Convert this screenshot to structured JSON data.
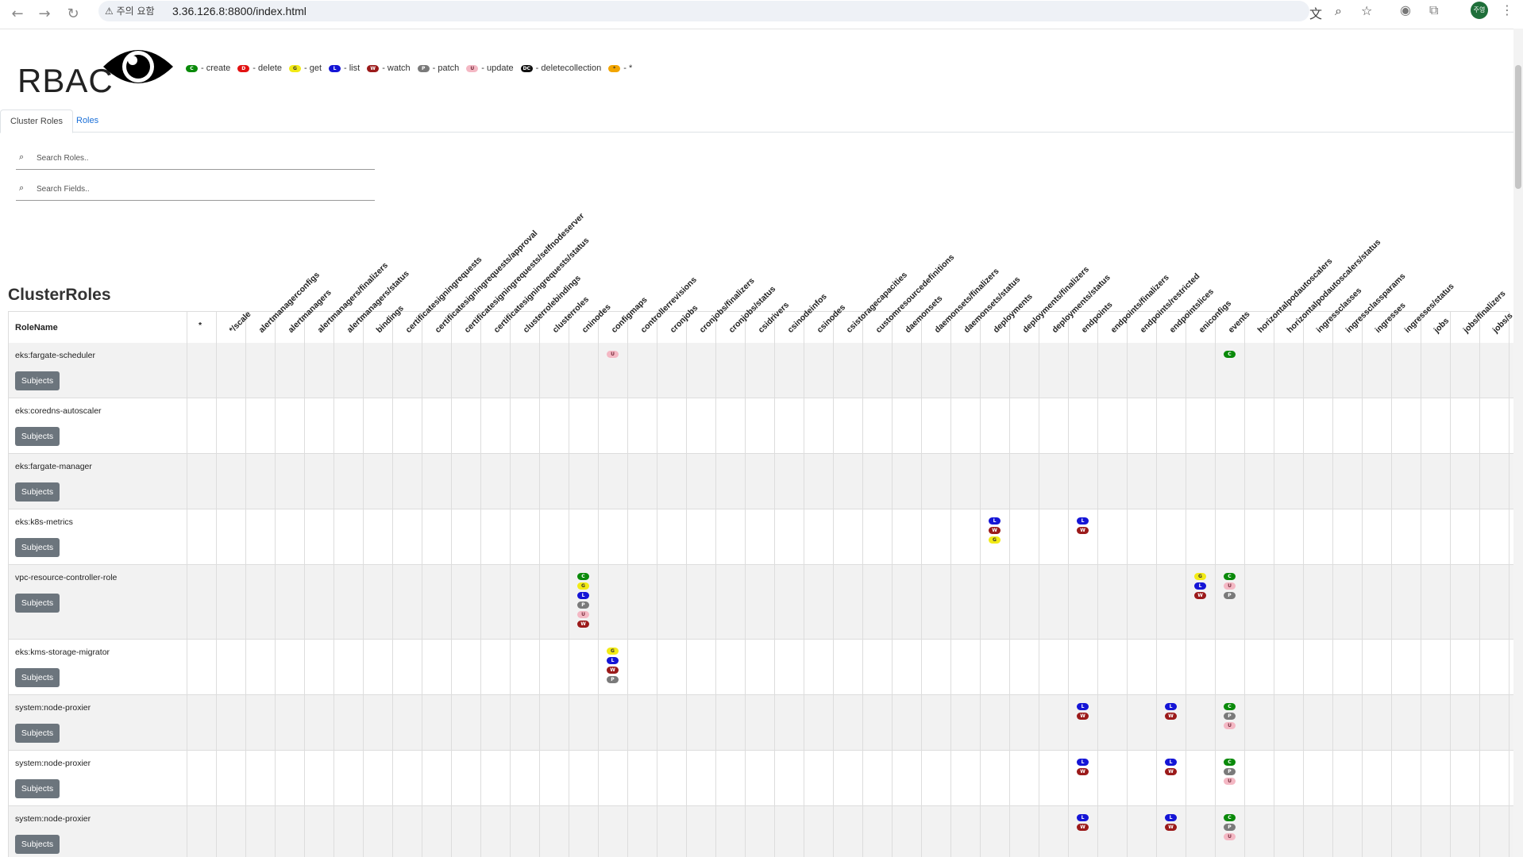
{
  "browser": {
    "warning": "⚠ 주의 요함",
    "url": "3.36.126.8:8800/index.html",
    "avatar": "주영"
  },
  "header": {
    "title": "RBAC",
    "legend": [
      {
        "code": "C",
        "cls": "c",
        "label": "- create"
      },
      {
        "code": "D",
        "cls": "d",
        "label": "- delete"
      },
      {
        "code": "G",
        "cls": "g",
        "label": "- get"
      },
      {
        "code": "L",
        "cls": "l",
        "label": "- list"
      },
      {
        "code": "W",
        "cls": "w",
        "label": "- watch"
      },
      {
        "code": "P",
        "cls": "p",
        "label": "- patch"
      },
      {
        "code": "U",
        "cls": "u",
        "label": "- update"
      },
      {
        "code": "DC",
        "cls": "dc",
        "label": "- deletecollection"
      },
      {
        "code": "*",
        "cls": "star",
        "label": "- *"
      }
    ]
  },
  "tabs": {
    "cluster_roles": "Cluster Roles",
    "roles": "Roles"
  },
  "search": {
    "roles_placeholder": "Search Roles..",
    "fields_placeholder": "Search Fields.."
  },
  "section_title": "ClusterRoles",
  "table": {
    "rolename_header": "RoleName",
    "subjects_label": "Subjects",
    "columns": [
      "*",
      "*/scale",
      "alertmanagerconfigs",
      "alertmanagers",
      "alertmanagers/finalizers",
      "alertmanagers/status",
      "bindings",
      "certificatesigningrequests",
      "certificatesigningrequests/approval",
      "certificatesigningrequests/selfnodeserver",
      "certificatesigningrequests/status",
      "clusterrolebindings",
      "clusterroles",
      "cninodes",
      "configmaps",
      "controllerrevisions",
      "cronjobs",
      "cronjobs/finalizers",
      "cronjobs/status",
      "csidrivers",
      "csinodeinfos",
      "csinodes",
      "csistoragecapacities",
      "customresourcedefinitions",
      "daemonsets",
      "daemonsets/finalizers",
      "daemonsets/status",
      "deployments",
      "deployments/finalizers",
      "deployments/status",
      "endpoints",
      "endpoints/finalizers",
      "endpoints/restricted",
      "endpointslices",
      "eniconfigs",
      "events",
      "horizontalpodautoscalers",
      "horizontalpodautoscalers/status",
      "ingressclasses",
      "ingressclassparams",
      "ingresses",
      "ingresses/status",
      "jobs",
      "jobs/finalizers",
      "jobs/s"
    ],
    "rows": [
      {
        "name": "eks:fargate-scheduler",
        "perms": {
          "14": [
            "U"
          ],
          "35": [
            "C"
          ]
        }
      },
      {
        "name": "eks:coredns-autoscaler",
        "perms": {}
      },
      {
        "name": "eks:fargate-manager",
        "perms": {}
      },
      {
        "name": "eks:k8s-metrics",
        "perms": {
          "27": [
            "L",
            "W",
            "G"
          ],
          "30": [
            "L",
            "W"
          ]
        }
      },
      {
        "name": "vpc-resource-controller-role",
        "perms": {
          "13": [
            "C",
            "G",
            "L",
            "P",
            "U",
            "W"
          ],
          "34": [
            "G",
            "L",
            "W"
          ],
          "35": [
            "C",
            "U",
            "P"
          ]
        }
      },
      {
        "name": "eks:kms-storage-migrator",
        "perms": {
          "14": [
            "G",
            "L",
            "W",
            "P"
          ]
        }
      },
      {
        "name": "system:node-proxier",
        "perms": {
          "30": [
            "L",
            "W"
          ],
          "33": [
            "L",
            "W"
          ],
          "35": [
            "C",
            "P",
            "U"
          ]
        }
      },
      {
        "name": "system:node-proxier",
        "perms": {
          "30": [
            "L",
            "W"
          ],
          "33": [
            "L",
            "W"
          ],
          "35": [
            "C",
            "P",
            "U"
          ]
        }
      },
      {
        "name": "system:node-proxier",
        "perms": {
          "30": [
            "L",
            "W"
          ],
          "33": [
            "L",
            "W"
          ],
          "35": [
            "C",
            "P",
            "U"
          ]
        }
      }
    ]
  }
}
